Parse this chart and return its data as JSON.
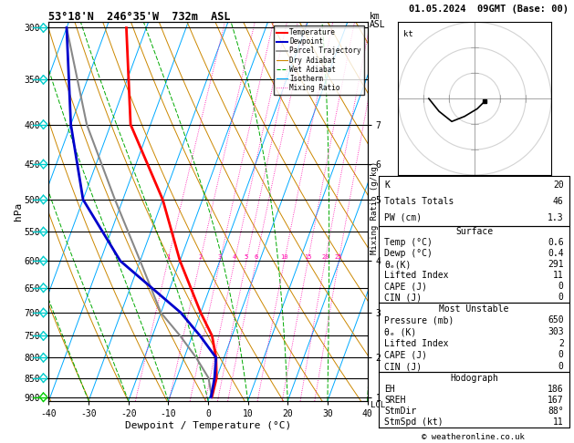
{
  "title_left": "53°18'N  246°35'W  732m  ASL",
  "title_right": "01.05.2024  09GMT (Base: 00)",
  "xlabel": "Dewpoint / Temperature (°C)",
  "ylabel_left": "hPa",
  "pressure_levels": [
    300,
    350,
    400,
    450,
    500,
    550,
    600,
    650,
    700,
    750,
    800,
    850,
    900
  ],
  "km_labels": [
    1,
    2,
    3,
    4,
    5,
    6,
    7
  ],
  "km_pressures": [
    900,
    800,
    700,
    600,
    500,
    450,
    400
  ],
  "mixing_ratios": [
    1,
    2,
    3,
    4,
    5,
    6,
    10,
    15,
    20,
    25
  ],
  "temp_profile": {
    "temps": [
      0.6,
      0.0,
      -2.0,
      -5.0,
      -10.0,
      -20.0,
      -30.0,
      -45.0,
      -55.0
    ],
    "pressures": [
      900,
      850,
      800,
      750,
      700,
      600,
      500,
      400,
      300
    ]
  },
  "dewp_profile": {
    "temps": [
      0.4,
      -0.5,
      -2.0,
      -8.0,
      -15.0,
      -35.0,
      -50.0,
      -60.0,
      -70.0
    ],
    "pressures": [
      900,
      850,
      800,
      750,
      700,
      600,
      500,
      400,
      300
    ]
  },
  "parcel_profile": {
    "temps": [
      0.6,
      -2.0,
      -7.0,
      -13.0,
      -20.0,
      -30.0,
      -42.0,
      -56.0,
      -70.0
    ],
    "pressures": [
      900,
      850,
      800,
      750,
      700,
      600,
      500,
      400,
      300
    ]
  },
  "colors": {
    "temperature": "#ff0000",
    "dewpoint": "#0000cc",
    "parcel": "#888888",
    "dry_adiabat": "#cc8800",
    "wet_adiabat": "#00aa00",
    "isotherm": "#00aaff",
    "mixing_ratio": "#ff00aa",
    "barb_cyan": "#00cccc",
    "barb_green": "#00cc00",
    "background": "#ffffff"
  },
  "pmax": 910.0,
  "pmin": 295.0,
  "tmin": -40.0,
  "tmax": 40.0,
  "skew": 35.0,
  "stats": {
    "K": "20",
    "Totals_Totals": "46",
    "PW_cm": "1.3",
    "surf_temp": "0.6",
    "surf_dewp": "0.4",
    "surf_theta": "291",
    "surf_li": "11",
    "surf_cape": "0",
    "surf_cin": "0",
    "mu_pres": "650",
    "mu_theta": "303",
    "mu_li": "2",
    "mu_cape": "0",
    "mu_cin": "0",
    "EH": "186",
    "SREH": "167",
    "StmDir": "88",
    "StmSpd": "11"
  },
  "copyright": "© weatheronline.co.uk",
  "lcl_label": "LCL"
}
